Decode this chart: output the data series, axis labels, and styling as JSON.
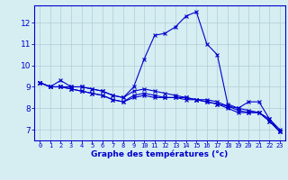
{
  "title": "Graphe des températures (°c)",
  "background_color": "#d6eef2",
  "grid_color": "#b0ccd4",
  "line_color": "#0000cc",
  "hours": [
    0,
    1,
    2,
    3,
    4,
    5,
    6,
    7,
    8,
    9,
    10,
    11,
    12,
    13,
    14,
    15,
    16,
    17,
    18,
    19,
    20,
    21,
    22,
    23
  ],
  "temp_actual": [
    9.2,
    9.0,
    9.3,
    9.0,
    9.0,
    8.9,
    8.8,
    8.6,
    8.5,
    9.0,
    10.3,
    11.4,
    11.5,
    11.8,
    12.3,
    12.5,
    11.0,
    10.5,
    8.2,
    8.0,
    8.3,
    8.3,
    7.5,
    7.0
  ],
  "temp_line2": [
    9.2,
    9.0,
    9.0,
    9.0,
    9.0,
    8.9,
    8.8,
    8.6,
    8.5,
    8.8,
    8.9,
    8.8,
    8.7,
    8.6,
    8.5,
    8.4,
    8.3,
    8.2,
    8.1,
    8.0,
    7.9,
    7.8,
    7.4,
    6.9
  ],
  "temp_line3": [
    9.2,
    9.0,
    9.0,
    8.9,
    8.8,
    8.7,
    8.6,
    8.4,
    8.3,
    8.6,
    8.7,
    8.6,
    8.5,
    8.5,
    8.5,
    8.4,
    8.4,
    8.3,
    8.1,
    7.9,
    7.8,
    7.8,
    7.5,
    6.9
  ],
  "temp_line4": [
    9.2,
    9.0,
    9.0,
    8.9,
    8.8,
    8.7,
    8.6,
    8.4,
    8.3,
    8.5,
    8.6,
    8.5,
    8.5,
    8.5,
    8.4,
    8.4,
    8.3,
    8.2,
    8.0,
    7.8,
    7.8,
    7.8,
    7.4,
    6.9
  ],
  "ylim": [
    6.5,
    12.8
  ],
  "yticks": [
    7,
    8,
    9,
    10,
    11,
    12
  ],
  "xlim": [
    -0.5,
    23.5
  ],
  "xlabel_fontsize": 6.5,
  "ytick_fontsize": 6.5,
  "xtick_fontsize": 5.0
}
